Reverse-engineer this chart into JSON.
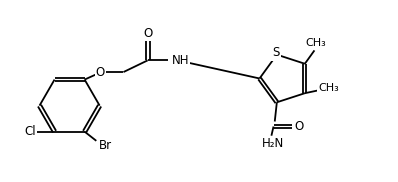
{
  "bg": "#ffffff",
  "lc": "#000000",
  "lw": 1.3,
  "fs": 8.5,
  "figsize": [
    3.98,
    1.82
  ],
  "dpi": 100,
  "xlim": [
    0,
    9.5
  ],
  "ylim": [
    0,
    4.3
  ]
}
